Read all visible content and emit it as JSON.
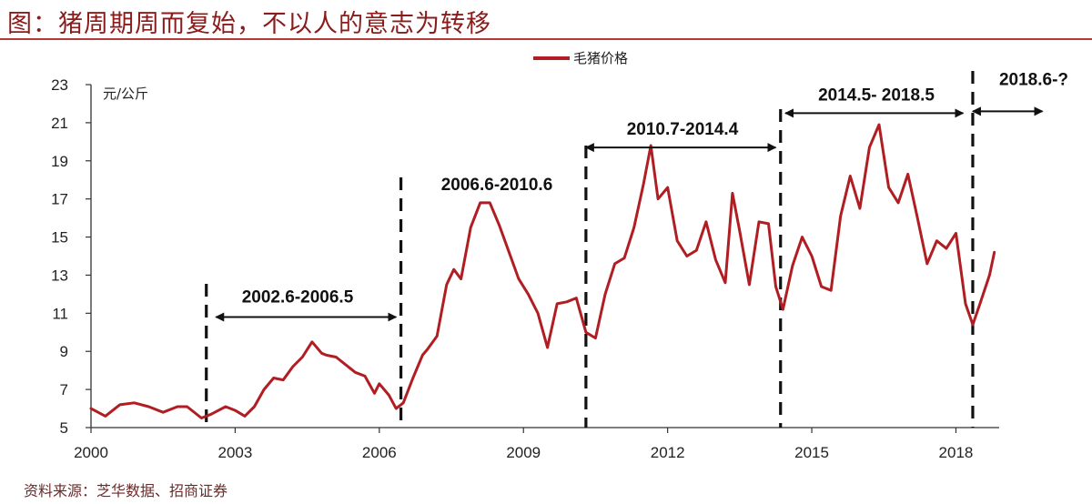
{
  "header": {
    "title": "图：猪周期周而复始，不以人的意志为转移"
  },
  "footer": {
    "source": "资料来源：芝华数据、招商证券"
  },
  "colors": {
    "line": "#b01e23",
    "title": "#8a1c1c",
    "axis": "#333333"
  },
  "chart_data": {
    "type": "line",
    "title": "",
    "xlabel": "",
    "ylabel": "元/公斤",
    "ylim": [
      5,
      23
    ],
    "xlim": [
      2000,
      2018.9
    ],
    "yticks": [
      "5",
      "7",
      "9",
      "11",
      "13",
      "15",
      "17",
      "19",
      "21",
      "23"
    ],
    "xticks": [
      "2000",
      "2003",
      "2006",
      "2009",
      "2012",
      "2015",
      "2018"
    ],
    "legend": {
      "position": "top-center",
      "entries": [
        "毛猪价格"
      ]
    },
    "grid": false,
    "series": [
      {
        "name": "毛猪价格",
        "x": [
          2000.0,
          2000.3,
          2000.6,
          2000.9,
          2001.2,
          2001.5,
          2001.8,
          2002.0,
          2002.3,
          2002.5,
          2002.8,
          2003.0,
          2003.2,
          2003.4,
          2003.6,
          2003.8,
          2004.0,
          2004.2,
          2004.4,
          2004.6,
          2004.8,
          2004.9,
          2005.1,
          2005.3,
          2005.5,
          2005.7,
          2005.9,
          2006.0,
          2006.2,
          2006.35,
          2006.5,
          2006.7,
          2006.9,
          2007.0,
          2007.2,
          2007.4,
          2007.55,
          2007.7,
          2007.9,
          2008.1,
          2008.3,
          2008.5,
          2008.7,
          2008.9,
          2009.1,
          2009.3,
          2009.5,
          2009.7,
          2009.9,
          2010.1,
          2010.3,
          2010.5,
          2010.7,
          2010.9,
          2011.1,
          2011.3,
          2011.5,
          2011.65,
          2011.8,
          2012.0,
          2012.2,
          2012.4,
          2012.6,
          2012.8,
          2013.0,
          2013.2,
          2013.35,
          2013.5,
          2013.7,
          2013.9,
          2014.1,
          2014.25,
          2014.4,
          2014.6,
          2014.8,
          2015.0,
          2015.2,
          2015.4,
          2015.6,
          2015.8,
          2016.0,
          2016.2,
          2016.4,
          2016.6,
          2016.8,
          2017.0,
          2017.2,
          2017.4,
          2017.6,
          2017.8,
          2018.0,
          2018.2,
          2018.35,
          2018.5,
          2018.7,
          2018.8
        ],
        "values": [
          6.0,
          5.6,
          6.2,
          6.3,
          6.1,
          5.8,
          6.1,
          6.1,
          5.5,
          5.7,
          6.1,
          5.9,
          5.6,
          6.1,
          7.0,
          7.6,
          7.5,
          8.2,
          8.7,
          9.5,
          8.9,
          8.8,
          8.7,
          8.3,
          7.9,
          7.7,
          6.8,
          7.3,
          6.7,
          6.0,
          6.3,
          7.6,
          8.8,
          9.1,
          9.8,
          12.5,
          13.3,
          12.8,
          15.5,
          16.8,
          16.8,
          15.6,
          14.2,
          12.8,
          12.0,
          11.0,
          9.2,
          11.5,
          11.6,
          11.8,
          10.0,
          9.7,
          12.0,
          13.6,
          13.9,
          15.5,
          17.8,
          19.8,
          17.0,
          17.6,
          14.8,
          14.0,
          14.3,
          15.8,
          13.8,
          12.6,
          17.3,
          15.3,
          12.5,
          15.8,
          15.7,
          12.4,
          11.2,
          13.5,
          15.0,
          14.0,
          12.4,
          12.2,
          16.1,
          18.2,
          16.5,
          19.7,
          20.9,
          17.6,
          16.8,
          18.3,
          16.0,
          13.6,
          14.8,
          14.4,
          15.2,
          11.5,
          10.4,
          11.5,
          13.0,
          14.2
        ]
      }
    ],
    "annotations": [
      {
        "label": "2002.6-2006.5",
        "arrow_from": 2002.6,
        "arrow_to": 2006.35,
        "y": 10.8,
        "label_y": 11.9
      },
      {
        "label": "2006.6-2010.6",
        "y": 17.8
      },
      {
        "label": "2010.7-2014.4",
        "arrow_from": 2010.3,
        "arrow_to": 2014.25,
        "y": 19.7,
        "label_y": 20.7
      },
      {
        "label": "2014.5- 2018.5",
        "arrow_from": 2014.45,
        "arrow_to": 2018.15,
        "y": 21.5,
        "label_y": 22.5
      },
      {
        "label": "2018.6-?",
        "arrow_from": 2018.35,
        "arrow_to": 2019.8,
        "y": 21.6,
        "label_y": 23.3
      }
    ],
    "dividers": [
      2002.4,
      2006.45,
      2010.3,
      2014.35,
      2018.35
    ]
  }
}
